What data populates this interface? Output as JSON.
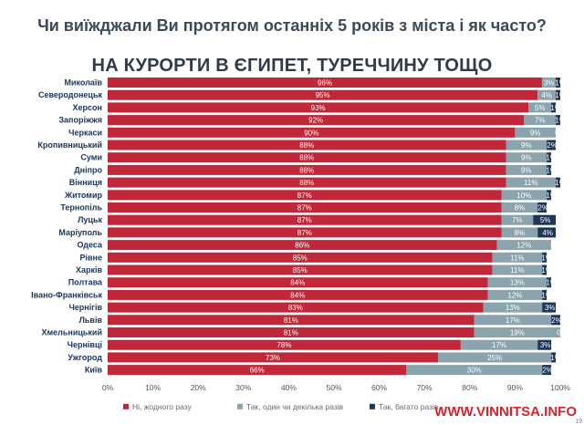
{
  "header": {
    "question": "Чи виїжджали Ви протягом останніх 5 років з міста і як часто?",
    "title": "НА КУРОРТИ В ЄГИПЕТ, ТУРЕЧЧИНУ ТОЩО"
  },
  "colors": {
    "never": "#c0283a",
    "once": "#8aa3ad",
    "many": "#1d3557",
    "axis_text": "#555555",
    "category_text": "#1b3760",
    "question_text": "#3a4a5c",
    "watermark": "#d8232a"
  },
  "chart_data": {
    "type": "bar",
    "orientation": "horizontal",
    "stacked": true,
    "categories": [
      "Миколаїв",
      "Северодонецьк",
      "Херсон",
      "Запоріжжя",
      "Черкаси",
      "Кропивницький",
      "Суми",
      "Дніпро",
      "Вінниця",
      "Житомир",
      "Тернопіль",
      "Луцьк",
      "Маріуполь",
      "Одеса",
      "Рівне",
      "Харків",
      "Полтава",
      "Івано-Франківськ",
      "Чернігів",
      "Львів",
      "Хмельницький",
      "Чернівці",
      "Ужгород",
      "Київ"
    ],
    "series": [
      {
        "name": "Ні, жодного разу",
        "values": [
          96,
          95,
          93,
          92,
          90,
          88,
          88,
          88,
          88,
          87,
          87,
          87,
          87,
          86,
          85,
          85,
          84,
          84,
          83,
          81,
          81,
          78,
          73,
          66
        ]
      },
      {
        "name": "Так, один чи декілька разів",
        "values": [
          3,
          4,
          5,
          7,
          9,
          9,
          9,
          9,
          11,
          10,
          8,
          7,
          8,
          12,
          11,
          11,
          13,
          12,
          13,
          17,
          19,
          17,
          25,
          30
        ]
      },
      {
        "name": "Так, багато разів",
        "values": [
          1,
          1,
          1,
          1,
          0,
          2,
          1,
          1,
          1,
          1,
          2,
          5,
          4,
          0,
          1,
          1,
          1,
          1,
          3,
          2,
          0,
          3,
          1,
          2
        ]
      }
    ],
    "bar_labels": [
      [
        "96%",
        "3%",
        "1%"
      ],
      [
        "95%",
        "4%",
        "1%"
      ],
      [
        "93%",
        "5%",
        "1%"
      ],
      [
        "92%",
        "7%",
        "1%"
      ],
      [
        "90%",
        "9%",
        "0%"
      ],
      [
        "88%",
        "9%",
        "2%"
      ],
      [
        "88%",
        "9%",
        "1%"
      ],
      [
        "88%",
        "9%",
        "1%"
      ],
      [
        "88%",
        "11%",
        "1%"
      ],
      [
        "87%",
        "10%",
        "1%"
      ],
      [
        "87%",
        "8%",
        "2%"
      ],
      [
        "87%",
        "7%",
        "5%"
      ],
      [
        "87%",
        "8%",
        "4%"
      ],
      [
        "86%",
        "12%",
        "0%"
      ],
      [
        "85%",
        "11%",
        "1%"
      ],
      [
        "85%",
        "11%",
        "1%"
      ],
      [
        "84%",
        "13%",
        "1%"
      ],
      [
        "84%",
        "12%",
        "1%"
      ],
      [
        "83%",
        "13%",
        "3%"
      ],
      [
        "81%",
        "17%",
        "2%"
      ],
      [
        "81%",
        "19%",
        "0%"
      ],
      [
        "78%",
        "17%",
        "3%"
      ],
      [
        "73%",
        "25%",
        "1%"
      ],
      [
        "66%",
        "30%",
        "2%"
      ]
    ],
    "x_ticks": [
      "0%",
      "10%",
      "20%",
      "30%",
      "40%",
      "50%",
      "60%",
      "70%",
      "80%",
      "90%",
      "100%"
    ],
    "xlim": [
      0,
      100
    ],
    "grid": false,
    "legend_position": "bottom"
  },
  "watermark": "WWW.VINNITSA.INFO",
  "page_number": "19"
}
